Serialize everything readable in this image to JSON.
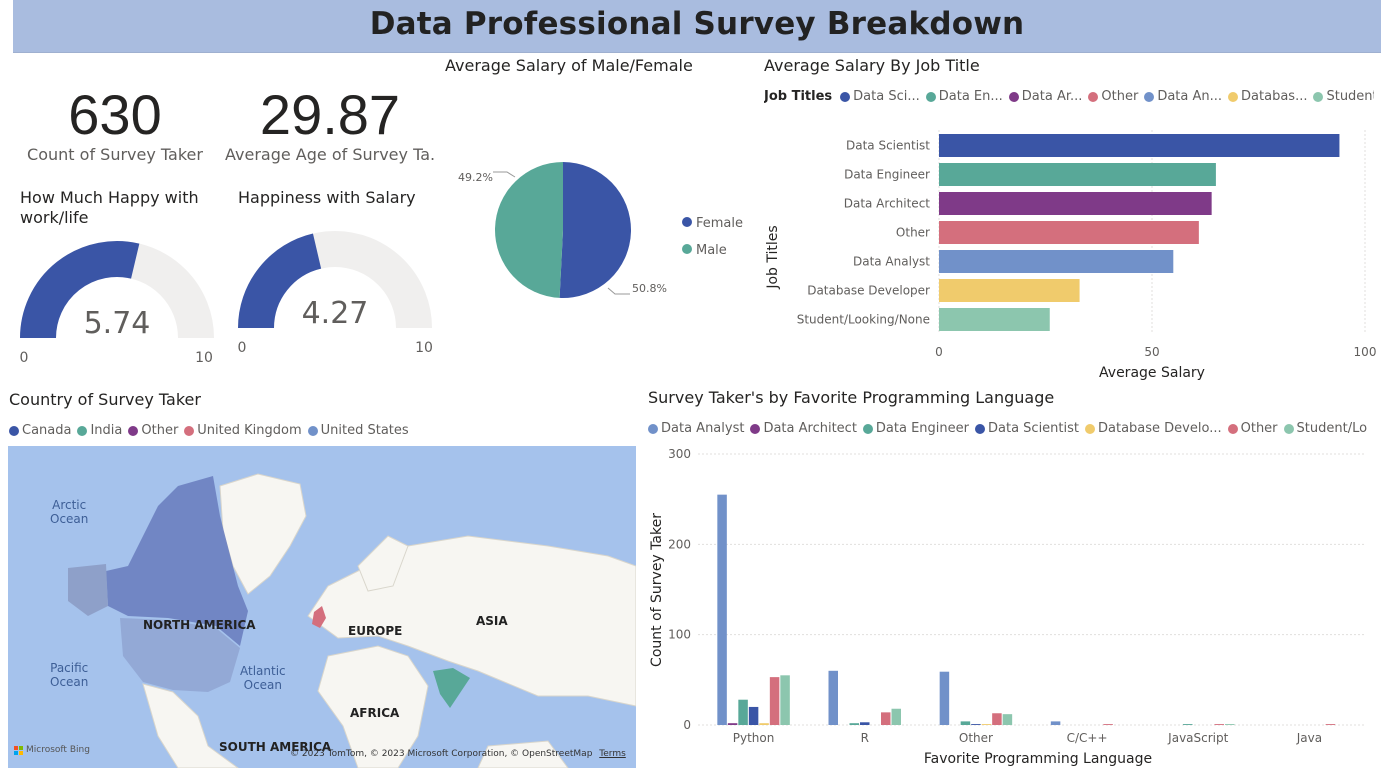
{
  "header": {
    "title": "Data Professional Survey Breakdown"
  },
  "kpis": [
    {
      "value": "630",
      "label": "Count of Survey Taker"
    },
    {
      "value": "29.87",
      "label": "Average Age of Survey Ta..."
    }
  ],
  "gauges": [
    {
      "title": "How Much Happy with work/life",
      "value": 5.74,
      "value_label": "5.74",
      "min": 0,
      "max": 10,
      "min_label": "0",
      "max_label": "10",
      "fill_color": "#3a55a6",
      "track_color": "#f0efee"
    },
    {
      "title": "Happiness with Salary",
      "value": 4.27,
      "value_label": "4.27",
      "min": 0,
      "max": 10,
      "min_label": "0",
      "max_label": "10",
      "fill_color": "#3a55a6",
      "track_color": "#f0efee"
    }
  ],
  "pie": {
    "title": "Average Salary of Male/Female",
    "legend": [
      {
        "name": "Female",
        "color": "#3a55a6"
      },
      {
        "name": "Male",
        "color": "#58a898"
      }
    ],
    "slice_labels": [
      "50.8%",
      "49.2%"
    ]
  },
  "bar_legend": {
    "title": "Job Titles",
    "items": [
      {
        "name": "Data Sci...",
        "color": "#3a55a6"
      },
      {
        "name": "Data En...",
        "color": "#58a898"
      },
      {
        "name": "Data Ar...",
        "color": "#7f3a88"
      },
      {
        "name": "Other",
        "color": "#d46f7d"
      },
      {
        "name": "Data An...",
        "color": "#7191c9"
      },
      {
        "name": "Databas...",
        "color": "#f0cb6c"
      },
      {
        "name": "Student...",
        "color": "#8cc6ae"
      }
    ]
  },
  "map": {
    "title": "Country of Survey Taker",
    "legend": [
      {
        "name": "Canada",
        "color": "#3a55a6"
      },
      {
        "name": "India",
        "color": "#58a898"
      },
      {
        "name": "Other",
        "color": "#7f3a88"
      },
      {
        "name": "United Kingdom",
        "color": "#d46f7d"
      },
      {
        "name": "United States",
        "color": "#7191c9"
      }
    ],
    "continents": [
      "NORTH AMERICA",
      "EUROPE",
      "ASIA",
      "AFRICA",
      "SOUTH AMERICA"
    ],
    "oceans": [
      "Arctic\nOcean",
      "Pacific\nOcean",
      "Atlantic\nOcean"
    ],
    "logo": "Microsoft Bing",
    "copyright": "© 2023 TomTom, © 2023 Microsoft Corporation, © OpenStreetMap",
    "terms": "Terms"
  },
  "col_legend": {
    "items": [
      {
        "name": "Data Analyst",
        "color": "#7191c9"
      },
      {
        "name": "Data Architect",
        "color": "#7f3a88"
      },
      {
        "name": "Data Engineer",
        "color": "#58a898"
      },
      {
        "name": "Data Scientist",
        "color": "#3a55a6"
      },
      {
        "name": "Database Develo...",
        "color": "#f0cb6c"
      },
      {
        "name": "Other",
        "color": "#d46f7d"
      },
      {
        "name": "Student/Lo...",
        "color": "#8cc6ae"
      }
    ]
  },
  "chart_data": [
    {
      "type": "pie",
      "title": "Average Salary of Male/Female",
      "categories": [
        "Female",
        "Male"
      ],
      "values": [
        50.8,
        49.2
      ],
      "colors": [
        "#3a55a6",
        "#58a898"
      ],
      "legend": "right"
    },
    {
      "type": "bar",
      "orientation": "horizontal",
      "title": "Average Salary By Job Title",
      "categories": [
        "Data Scientist",
        "Data Engineer",
        "Data Architect",
        "Other",
        "Data Analyst",
        "Database Developer",
        "Student/Looking/None"
      ],
      "values": [
        94,
        65,
        64,
        61,
        55,
        33,
        26
      ],
      "colors": [
        "#3a55a6",
        "#58a898",
        "#7f3a88",
        "#d46f7d",
        "#7191c9",
        "#f0cb6c",
        "#8cc6ae"
      ],
      "xlabel": "Average Salary",
      "ylabel": "Job Titles",
      "xlim": [
        0,
        100
      ],
      "xticks": [
        "0",
        "50",
        "100"
      ],
      "grid": true,
      "legend": "top"
    },
    {
      "type": "bar",
      "orientation": "vertical",
      "title": "Survey Taker's by Favorite Programming Language",
      "categories": [
        "Python",
        "R",
        "Other",
        "C/C++",
        "JavaScript",
        "Java"
      ],
      "series": [
        {
          "name": "Data Analyst",
          "color": "#7191c9",
          "values": [
            255,
            60,
            59,
            4,
            0,
            0
          ]
        },
        {
          "name": "Data Architect",
          "color": "#7f3a88",
          "values": [
            2,
            0,
            0,
            0,
            0,
            0
          ]
        },
        {
          "name": "Data Engineer",
          "color": "#58a898",
          "values": [
            28,
            2,
            4,
            0,
            1,
            0
          ]
        },
        {
          "name": "Data Scientist",
          "color": "#3a55a6",
          "values": [
            20,
            3,
            1,
            0,
            0,
            0
          ]
        },
        {
          "name": "Database Develo...",
          "color": "#f0cb6c",
          "values": [
            2,
            0,
            1,
            0,
            0,
            0
          ]
        },
        {
          "name": "Other",
          "color": "#d46f7d",
          "values": [
            53,
            14,
            13,
            1,
            1,
            1
          ]
        },
        {
          "name": "Student/Lo...",
          "color": "#8cc6ae",
          "values": [
            55,
            18,
            12,
            0,
            1,
            0
          ]
        }
      ],
      "xlabel": "Favorite Programming Language",
      "ylabel": "Count of Survey Taker",
      "ylim": [
        0,
        300
      ],
      "yticks": [
        "0",
        "100",
        "200",
        "300"
      ],
      "grid": true,
      "legend": "top"
    }
  ]
}
